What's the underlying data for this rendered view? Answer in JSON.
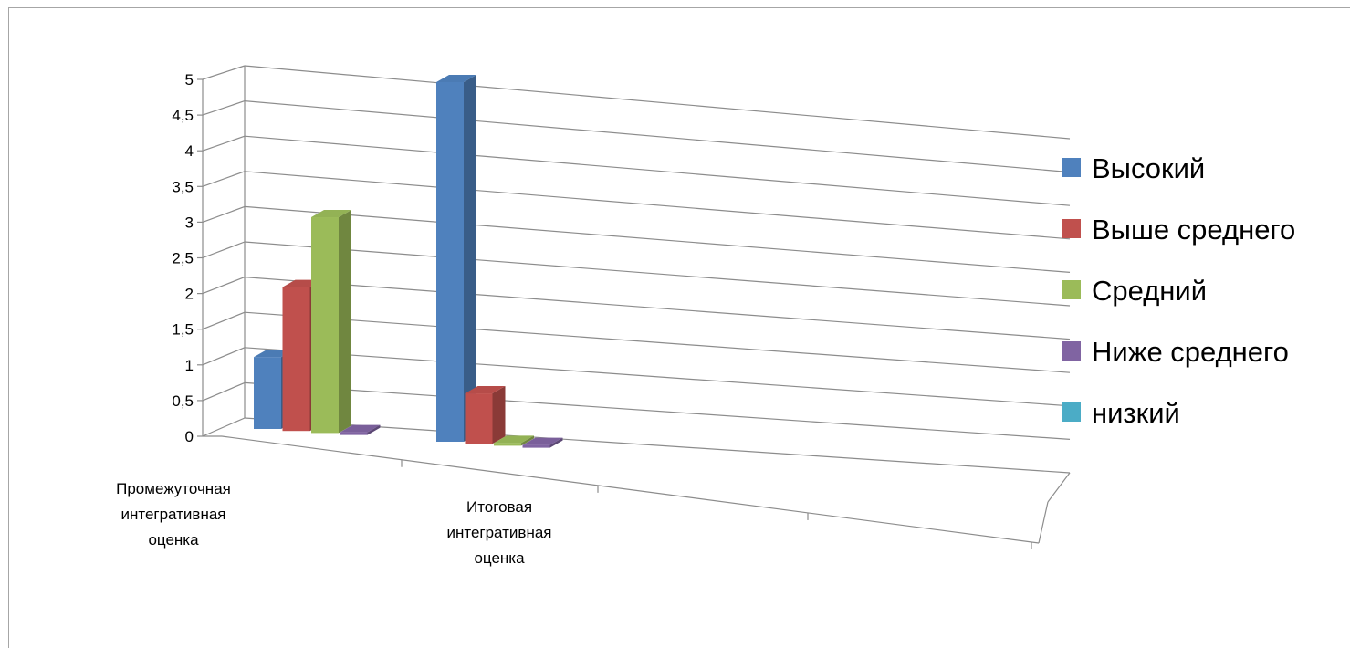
{
  "chart_data": {
    "type": "bar",
    "subtype": "3d-clustered-column",
    "categories": [
      "Промежуточная интегративная оценка",
      "Итоговая интегративная оценка"
    ],
    "category_lines": [
      [
        "Промежуточная",
        "интегративная",
        "оценка"
      ],
      [
        "Итоговая",
        "интегративная",
        "оценка"
      ]
    ],
    "series": [
      {
        "name": "Высокий",
        "color": "#4f81bd",
        "values": [
          1,
          5
        ]
      },
      {
        "name": "Выше среднего",
        "color": "#c0504d",
        "values": [
          2,
          0.7
        ]
      },
      {
        "name": "Средний",
        "color": "#9bbb59",
        "values": [
          3,
          0
        ]
      },
      {
        "name": "Ниже среднего",
        "color": "#8064a2",
        "values": [
          0,
          0
        ]
      },
      {
        "name": "низкий",
        "color": "#4bacc6",
        "values": [
          0,
          0
        ]
      }
    ],
    "y_ticks": [
      "0",
      "0,5",
      "1",
      "1,5",
      "2",
      "2,5",
      "3",
      "3,5",
      "4",
      "4,5",
      "5"
    ],
    "ylim": [
      0,
      5
    ],
    "grid": true,
    "legend_position": "right"
  }
}
